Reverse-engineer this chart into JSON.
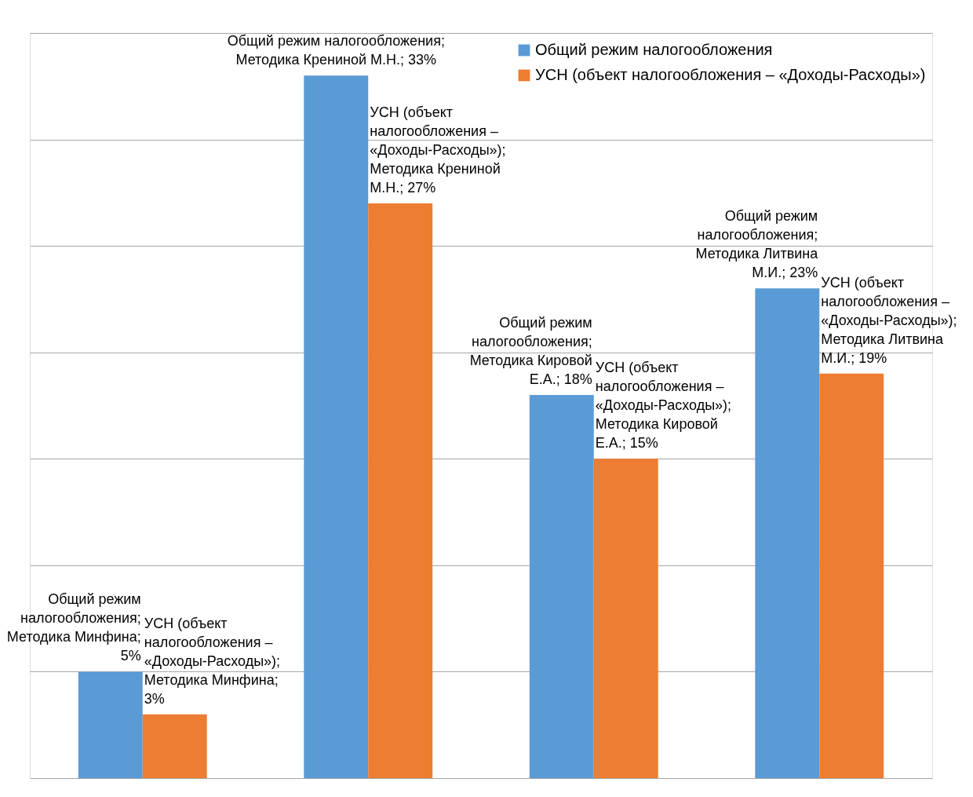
{
  "chart_data": {
    "type": "bar",
    "categories": [
      null,
      null,
      null,
      null
    ],
    "series": [
      {
        "name": "Общий режим налогообложения",
        "color": "#5b9bd5",
        "values": [
          5,
          33,
          18,
          23
        ],
        "value_labels": [
          "Общий режим налогообложения; Методика Минфина; 5%",
          "Общий режим налогообложения; Методика Крениной М.Н.; 33%",
          "Общий режим налогообложения; Методика Кировой Е.А.; 18%",
          "Общий режим налогообложения; Методика Литвина М.И.; 23%"
        ]
      },
      {
        "name": "УСН (объект налогообложения – «Доходы-Расходы»)",
        "color": "#ed7d31",
        "values": [
          3,
          27,
          15,
          19
        ],
        "value_labels": [
          "УСН (объект налогообложения – «Доходы-Расходы»); Методика Минфина; 3%",
          "УСН (объект налогообложения – «Доходы-Расходы»); Методика Крениной М.Н.; 27%",
          "УСН (объект налогообложения – «Доходы-Расходы»); Методика Кировой Е.А.; 15%",
          "УСН (объект налогообложения – «Доходы-Расходы»); Методика Литвина М.И.; 19%"
        ]
      }
    ],
    "ylim": [
      0,
      35
    ],
    "yticks": [
      {
        "value": 0,
        "label": null
      },
      {
        "value": 5,
        "label": null
      },
      {
        "value": 10,
        "label": null
      },
      {
        "value": 15,
        "label": null
      },
      {
        "value": 20,
        "label": null
      },
      {
        "value": 25,
        "label": null
      },
      {
        "value": 30,
        "label": null
      },
      {
        "value": 35,
        "label": null
      }
    ],
    "grid": "y",
    "legend": "top",
    "tick_labels": false
  }
}
